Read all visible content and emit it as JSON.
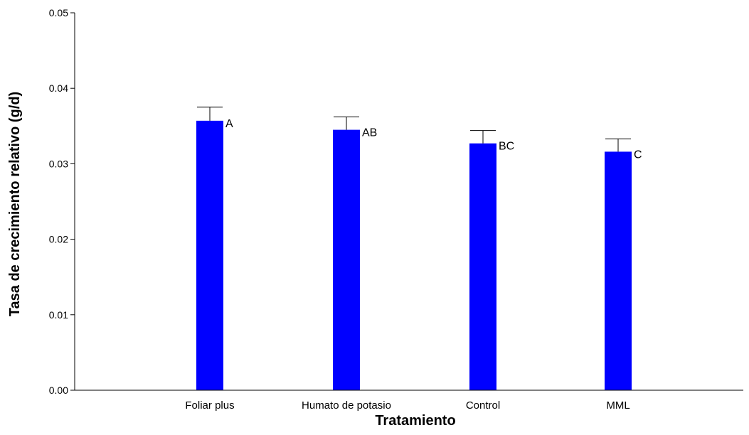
{
  "chart_data": {
    "type": "bar",
    "categories": [
      "Foliar plus",
      "Humato de potasio",
      "Control",
      "MML"
    ],
    "values": [
      0.0357,
      0.0345,
      0.0327,
      0.0316
    ],
    "errors": [
      0.0018,
      0.0017,
      0.0017,
      0.0017
    ],
    "significance_labels": [
      "A",
      "AB",
      "BC",
      "C"
    ],
    "xlabel": "Tratamiento",
    "ylabel": "Tasa de crecimiento relativo (g/d)",
    "ylim": [
      0,
      0.05
    ],
    "yticks": [
      "0.00",
      "0.01",
      "0.02",
      "0.03",
      "0.04",
      "0.05"
    ],
    "bar_color": "#0000ff",
    "grid": false,
    "legend": "none"
  }
}
